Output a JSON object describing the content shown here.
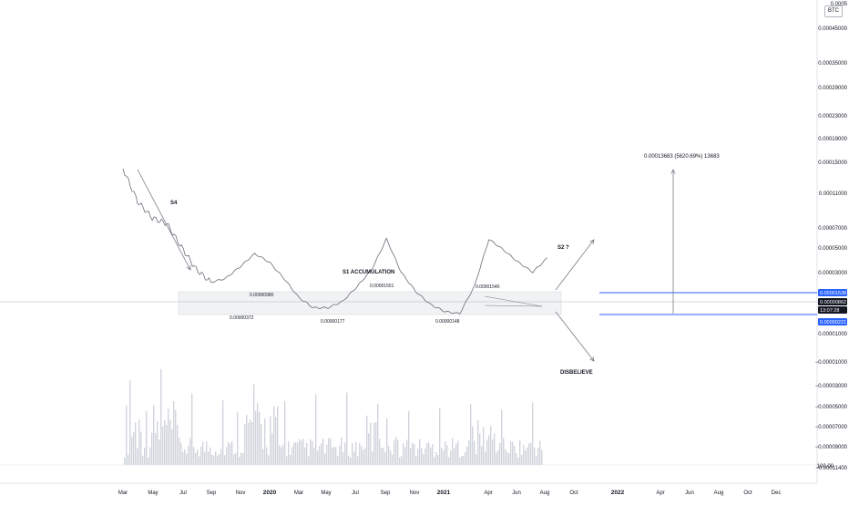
{
  "unit_badge": "BTC",
  "price_axis": {
    "labels": [
      "0.00045000",
      "0.00035000",
      "0.00029000",
      "0.00023000",
      "0.00019000",
      "0.00015000",
      "0.00011000",
      "0.00007000",
      "0.00005000",
      "0.00003000",
      "0.00001000",
      "−0.00001000",
      "−0.00003000",
      "−0.00005000",
      "−0.00007000",
      "−0.00009000",
      "−0.00011400"
    ],
    "top_label": "0.0005",
    "volume_label": "100.00"
  },
  "price_flags": [
    {
      "text": "0.00001538",
      "color": "#2962ff"
    },
    {
      "text": "0.00000862",
      "color": "#131722"
    },
    {
      "text": "13:07:28",
      "color": "#131722"
    },
    {
      "text": "0.00000221",
      "color": "#2962ff"
    }
  ],
  "x_axis": {
    "ticks": [
      {
        "label": "Mar",
        "year": false
      },
      {
        "label": "May",
        "year": false
      },
      {
        "label": "Jul",
        "year": false
      },
      {
        "label": "Sep",
        "year": false
      },
      {
        "label": "Nov",
        "year": false
      },
      {
        "label": "2020",
        "year": true
      },
      {
        "label": "Mar",
        "year": false
      },
      {
        "label": "May",
        "year": false
      },
      {
        "label": "Jul",
        "year": false
      },
      {
        "label": "Sep",
        "year": false
      },
      {
        "label": "Nov",
        "year": false
      },
      {
        "label": "2021",
        "year": true
      },
      {
        "label": "Apr",
        "year": false
      },
      {
        "label": "Jun",
        "year": false
      },
      {
        "label": "Aug",
        "year": false
      },
      {
        "label": "Oct",
        "year": false
      },
      {
        "label": "2022",
        "year": true
      },
      {
        "label": "Apr",
        "year": false
      },
      {
        "label": "Jun",
        "year": false
      },
      {
        "label": "Aug",
        "year": false
      },
      {
        "label": "Oct",
        "year": false
      },
      {
        "label": "Dec",
        "year": false
      }
    ]
  },
  "annotations": {
    "s4": "S4",
    "accumulation": "S1 ACCUMULATION",
    "s2": "S2 ?",
    "disbelieve": "DISBELIEVE",
    "target": "0.00013683 (5620.69%) 13683"
  },
  "point_labels": [
    "0.00000980",
    "0.00000372",
    "0.00001551",
    "0.00000177",
    "0.00001540",
    "0.00000148"
  ],
  "chart_data": {
    "type": "line",
    "title": "",
    "xlabel": "",
    "ylabel": "",
    "ylim": [
      -0.000114,
      0.0005
    ],
    "scale": "logarithmic",
    "grid": false,
    "series": [
      {
        "values_note": "",
        "x": [
          "Mar 2019",
          "Apr 2019",
          "May 2019",
          "Jun 2019",
          "Jul 2019",
          "Aug 2019",
          "Sep 2019",
          "Oct 2019",
          "Nov 2019",
          "Dec 2019",
          "Jan 2020",
          "Feb 2020",
          "Mar 2020",
          "Apr 2020",
          "May 2020",
          "Jun 2020",
          "Jul 2020",
          "Aug 2020",
          "Sep 2020",
          "Oct 2020",
          "Nov 2020",
          "Dec 2020",
          "Jan 2021",
          "Feb 2021",
          "Mar 2021",
          "Apr 2021",
          "May 2021",
          "Jun 2021",
          "Jul 2021",
          "Aug 2021"
        ],
        "y": [
          0.00014,
          5e-05,
          3e-05,
          2.5e-05,
          1.2e-05,
          6e-06,
          4e-06,
          4.5e-06,
          6.5e-06,
          9.8e-06,
          7.5e-06,
          4.5e-06,
          2.5e-06,
          1.8e-06,
          1.8e-06,
          2.2e-06,
          3.5e-06,
          6e-06,
          1.55e-05,
          5.5e-06,
          3e-06,
          2e-06,
          1.6e-06,
          1.5e-06,
          3.5e-06,
          1.54e-05,
          1.1e-05,
          7.5e-06,
          5.5e-06,
          8.6e-06
        ]
      }
    ],
    "levels": {
      "upper": 1.538e-05,
      "last": 8.62e-06,
      "lower": 2.21e-06
    },
    "projection_target": 0.00013683,
    "projection_percent": 5620.69
  }
}
